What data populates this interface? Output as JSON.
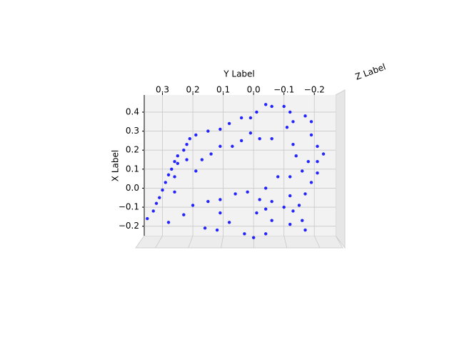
{
  "chart_data": {
    "type": "scatter3d",
    "xlabel": "X Label",
    "ylabel": "Y Label",
    "zlabel": "Z Label",
    "color": "#0000ff",
    "grid": true,
    "xlim": [
      -0.25,
      0.49
    ],
    "ylim": [
      0.36,
      -0.27
    ],
    "xticks": [
      0.4,
      0.3,
      0.2,
      0.1,
      {
        "value": 0,
        "label": "0.0"
      },
      {
        "value": -0.1,
        "label": "−0.1"
      },
      {
        "value": -0.2,
        "label": "−0.2"
      }
    ],
    "yticks": [
      0.3,
      0.2,
      0.1,
      {
        "value": 0,
        "label": "0.0"
      },
      {
        "value": -0.1,
        "label": "−0.1"
      },
      {
        "value": -0.2,
        "label": "−0.2"
      }
    ],
    "y": [
      0.35,
      0.33,
      0.32,
      0.31,
      0.3,
      0.29,
      0.28,
      0.27,
      0.26,
      0.25,
      0.23,
      0.22,
      0.21,
      0.19,
      0.15,
      0.26,
      0.26,
      0.25,
      0.22,
      0.19,
      0.17,
      0.14,
      0.11,
      0.07,
      0.04,
      0.01,
      0.11,
      0.08,
      0.04,
      0.01,
      -0.01,
      -0.04,
      -0.06,
      -0.1,
      -0.12,
      -0.13,
      -0.11,
      -0.06,
      -0.02,
      -0.17,
      -0.19,
      -0.19,
      -0.21,
      -0.23,
      -0.21,
      -0.21,
      -0.19,
      -0.17,
      -0.14,
      -0.13,
      -0.18,
      -0.16,
      -0.12,
      -0.08,
      -0.04,
      -0.02,
      -0.01,
      0.02,
      0.06,
      0.11,
      0.15,
      0.2,
      0.23,
      0.28,
      0.11,
      0.08,
      0.16,
      0.12,
      0.03,
      0.0,
      -0.04,
      -0.06,
      -0.1,
      -0.12,
      -0.17,
      -0.16,
      -0.13,
      -0.12,
      -0.15,
      -0.06,
      -0.04
    ],
    "x": [
      -0.16,
      -0.12,
      -0.08,
      -0.05,
      -0.01,
      0.03,
      0.07,
      0.1,
      0.14,
      0.17,
      0.2,
      0.23,
      0.26,
      0.28,
      0.3,
      -0.02,
      0.06,
      0.13,
      0.15,
      0.09,
      0.15,
      0.18,
      0.22,
      0.22,
      0.25,
      0.29,
      0.31,
      0.34,
      0.37,
      0.37,
      0.4,
      0.44,
      0.43,
      0.43,
      0.4,
      0.35,
      0.32,
      0.26,
      0.26,
      0.38,
      0.35,
      0.28,
      0.22,
      0.18,
      0.14,
      0.08,
      0.03,
      -0.03,
      0.17,
      0.23,
      0.14,
      0.09,
      0.06,
      0.06,
      0.0,
      -0.06,
      -0.13,
      -0.02,
      -0.03,
      -0.06,
      -0.07,
      -0.09,
      -0.14,
      -0.18,
      -0.13,
      -0.18,
      -0.21,
      -0.22,
      -0.24,
      -0.26,
      -0.24,
      -0.17,
      -0.1,
      -0.19,
      -0.22,
      -0.17,
      -0.12,
      -0.04,
      -0.09,
      -0.07,
      -0.11
    ]
  }
}
